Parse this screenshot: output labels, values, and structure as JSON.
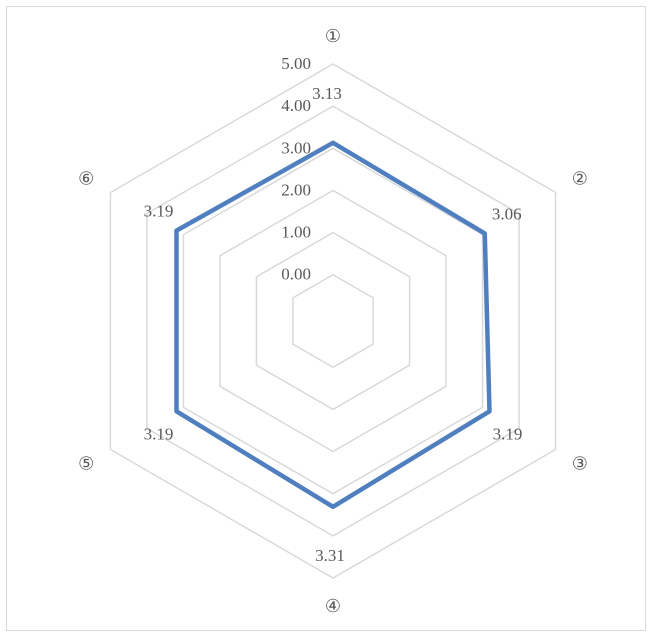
{
  "chart_data": {
    "type": "radar",
    "title": "",
    "categories": [
      "①",
      "②",
      "③",
      "④",
      "⑤",
      "⑥"
    ],
    "series": [
      {
        "values": [
          3.13,
          3.06,
          3.19,
          3.31,
          3.19,
          3.19
        ],
        "labels": [
          "3.13",
          "3.06",
          "3.19",
          "3.31",
          "3.19",
          "3.19"
        ],
        "color": "#4f7fbf"
      }
    ],
    "rlim": [
      0,
      5
    ],
    "ticks": [
      0,
      1,
      2,
      3,
      4,
      5
    ],
    "tick_labels": [
      "0.00",
      "1.00",
      "2.00",
      "3.00",
      "4.00",
      "5.00"
    ],
    "grid": true,
    "grid_color": "#d9d9d9",
    "legend": "none"
  }
}
